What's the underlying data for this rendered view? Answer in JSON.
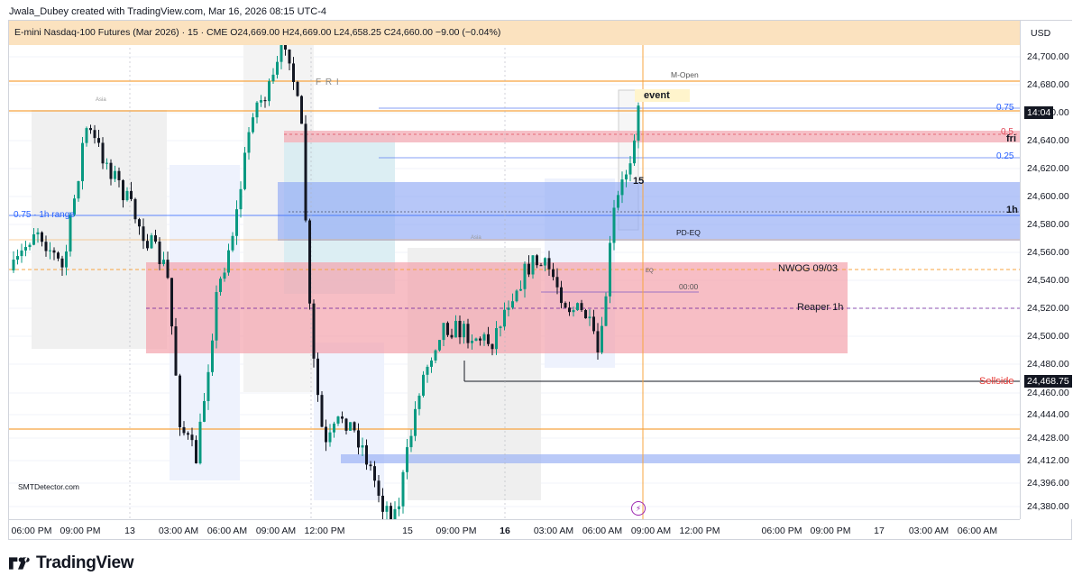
{
  "credit": "Jwala_Dubey created with TradingView.com, Mar 16, 2026 08:15 UTC-4",
  "legend": "E-mini Nasdaq-100 Futures (Mar 2026) · 15 · CME  O24,669.00  H24,669.00  L24,658.25  C24,660.00  −9.00 (−0.04%)",
  "currency": "USD",
  "price_ticks": [
    "24,700.00",
    "24,680.00",
    "24,660.00",
    "24,640.00",
    "24,620.00",
    "24,600.00",
    "24,580.00",
    "24,560.00",
    "24,540.00",
    "24,520.00",
    "24,500.00",
    "24,480.00",
    "24,460.00",
    "24,444.00",
    "24,428.00",
    "24,412.00",
    "24,396.00",
    "24,380.00"
  ],
  "price_badges": {
    "countdown": "14:04",
    "sellside_price": "24,468.75"
  },
  "time_ticks": [
    {
      "label": "06:00 PM",
      "bold": false
    },
    {
      "label": "09:00 PM",
      "bold": false
    },
    {
      "label": "13",
      "bold": false
    },
    {
      "label": "03:00 AM",
      "bold": false
    },
    {
      "label": "06:00 AM",
      "bold": false
    },
    {
      "label": "09:00 AM",
      "bold": false
    },
    {
      "label": "12:00 PM",
      "bold": false
    },
    {
      "label": "15",
      "bold": false
    },
    {
      "label": "09:00 PM",
      "bold": false
    },
    {
      "label": "16",
      "bold": true
    },
    {
      "label": "03:00 AM",
      "bold": false
    },
    {
      "label": "06:00 AM",
      "bold": false
    },
    {
      "label": "09:00 AM",
      "bold": false
    },
    {
      "label": "12:00 PM",
      "bold": false
    },
    {
      "label": "06:00 PM",
      "bold": false
    },
    {
      "label": "09:00 PM",
      "bold": false
    },
    {
      "label": "17",
      "bold": false
    },
    {
      "label": "03:00 AM",
      "bold": false
    },
    {
      "label": "06:00 AM",
      "bold": false
    }
  ],
  "annotations": {
    "m_open": "M-Open",
    "fri_top": "F R I",
    "asia": "Asia",
    "fib_075_right": "0.75",
    "fib_05": "0.5",
    "fri_label": "fri",
    "fib_025": "0.25",
    "tf_15": "15",
    "tf_1h": "1h",
    "range_label": "0.75 · 1h range",
    "pd_eq": "PD-EQ",
    "nwog": "NWOG 09/03",
    "eq": "EQ",
    "time_0000": "00:00",
    "reaper": "Reaper 1h",
    "sellside": "Sellside",
    "event": "event",
    "watermark": "SMTDetector.com",
    "asia_small": "Asia"
  },
  "colors": {
    "up": "#089981",
    "down": "#131722",
    "orange": "#f7a440",
    "blue_zone": "#90a9f5",
    "red_zone": "#f3a3ad",
    "fib_blue": "#2962ff"
  },
  "brand": "TradingView",
  "chart_data": {
    "type": "candlestick",
    "symbol": "E-mini Nasdaq-100 Futures (Mar 2026)",
    "interval": "15",
    "ylim": [
      24370,
      24720
    ],
    "price_levels": [
      24682,
      24660,
      24647,
      24628,
      24588,
      24550,
      24468.75,
      24432,
      24412
    ]
  }
}
